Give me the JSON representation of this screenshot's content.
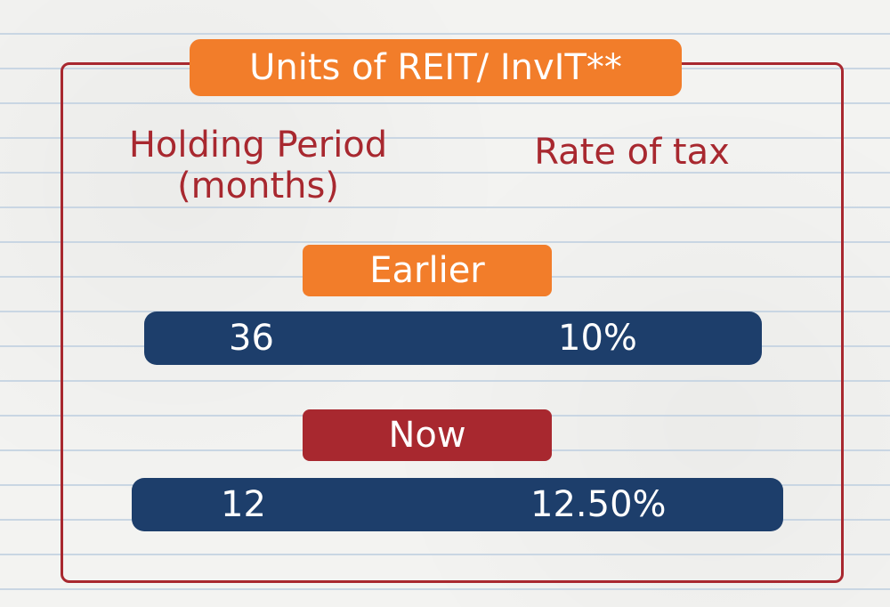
{
  "title": "Units of REIT/ InvIT**",
  "headers": {
    "holding_line1": "Holding Period",
    "holding_line2": "(months)",
    "rate": "Rate of tax"
  },
  "rows": [
    {
      "label": "Earlier",
      "holding": "36",
      "rate": "10%"
    },
    {
      "label": "Now",
      "holding": "12",
      "rate": "12.50%"
    }
  ],
  "colors": {
    "orange": "#f27d2a",
    "red": "#a8282f",
    "navy": "#1d3e6b"
  }
}
